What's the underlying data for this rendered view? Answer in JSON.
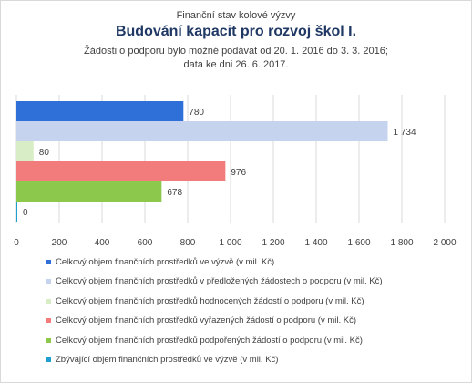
{
  "header": {
    "supertitle": "Finanční stav kolové výzvy",
    "title": "Budování kapacit pro rozvoj škol I.",
    "subtitle_line1": "Žádosti o podporu bylo možné podávat od 20. 1. 2016 do 3. 3. 2016;",
    "subtitle_line2": "data ke dni 26. 6. 2017."
  },
  "chart_data": {
    "type": "bar",
    "orientation": "horizontal",
    "title": "Budování kapacit pro rozvoj škol I.",
    "xlim": [
      0,
      2000
    ],
    "x_ticks": [
      0,
      200,
      400,
      600,
      800,
      1000,
      1200,
      1400,
      1600,
      1800,
      2000
    ],
    "x_tick_labels": [
      "0",
      "200",
      "400",
      "600",
      "800",
      "1 000",
      "1 200",
      "1 400",
      "1 600",
      "1 800",
      "2 000"
    ],
    "grid": true,
    "legend_position": "bottom",
    "series": [
      {
        "name": "Celkový objem finančních prostředků ve výzvě (v mil. Kč)",
        "value": 780,
        "label": "780",
        "color": "#2e6fd8"
      },
      {
        "name": "Celkový objem finančních prostředků v předložených žádostech o podporu (v mil. Kč)",
        "value": 1734,
        "label": "1 734",
        "color": "#c5d3ee"
      },
      {
        "name": "Celkový objem finančních prostředků hodnocených žádostí o podporu (v mil. Kč)",
        "value": 80,
        "label": "80",
        "color": "#d8ecc5"
      },
      {
        "name": "Celkový objem finančních prostředků vyřazených žádostí o podporu (v mil. Kč)",
        "value": 976,
        "label": "976",
        "color": "#f27b7b"
      },
      {
        "name": "Celkový objem finančních prostředků podpořených žádostí o podporu (v mil. Kč)",
        "value": 678,
        "label": "678",
        "color": "#8cc84b"
      },
      {
        "name": "Zbývající objem finančních prostředků ve výzvě (v mil. Kč)",
        "value": 0,
        "label": "0",
        "color": "#1f9fd0"
      }
    ]
  }
}
